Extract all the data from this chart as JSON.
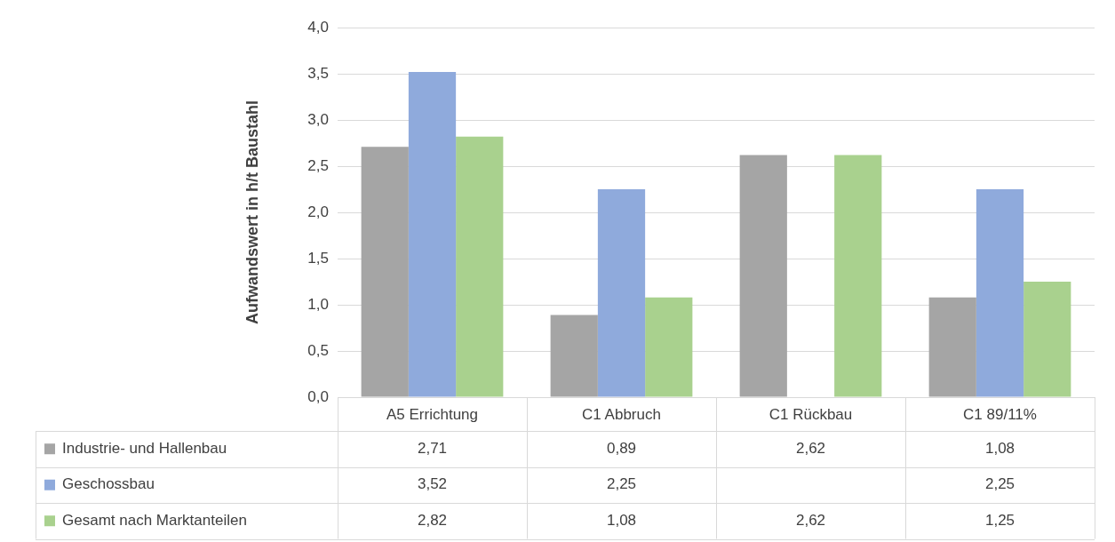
{
  "chart_data": {
    "type": "bar",
    "ylabel": "Aufwandswert in h/t Baustahl",
    "categories": [
      "A5 Errichtung",
      "C1 Abbruch",
      "C1 Rückbau",
      "C1 89/11%"
    ],
    "series": [
      {
        "name": "Industrie- und Hallenbau",
        "color": "#a5a5a5",
        "values": [
          2.71,
          0.89,
          2.62,
          1.08
        ],
        "value_labels": [
          "2,71",
          "0,89",
          "2,62",
          "1,08"
        ]
      },
      {
        "name": "Geschossbau",
        "color": "#8faadc",
        "values": [
          3.52,
          2.25,
          null,
          2.25
        ],
        "value_labels": [
          "3,52",
          "2,25",
          null,
          "2,25"
        ]
      },
      {
        "name": "Gesamt nach Marktanteilen",
        "color": "#a9d18e",
        "values": [
          2.82,
          1.08,
          2.62,
          1.25
        ],
        "value_labels": [
          "2,82",
          "1,08",
          "2,62",
          "1,25"
        ]
      }
    ],
    "ylim": [
      0,
      4
    ],
    "yticks": [
      {
        "value": 0,
        "label": "0,0"
      },
      {
        "value": 0.5,
        "label": "0,5"
      },
      {
        "value": 1,
        "label": "1,0"
      },
      {
        "value": 1.5,
        "label": "1,5"
      },
      {
        "value": 2,
        "label": "2,0"
      },
      {
        "value": 2.5,
        "label": "2,5"
      },
      {
        "value": 3,
        "label": "3,0"
      },
      {
        "value": 3.5,
        "label": "3,5"
      },
      {
        "value": 4,
        "label": "4,0"
      }
    ],
    "grid": "y",
    "legend": "bottom left"
  }
}
